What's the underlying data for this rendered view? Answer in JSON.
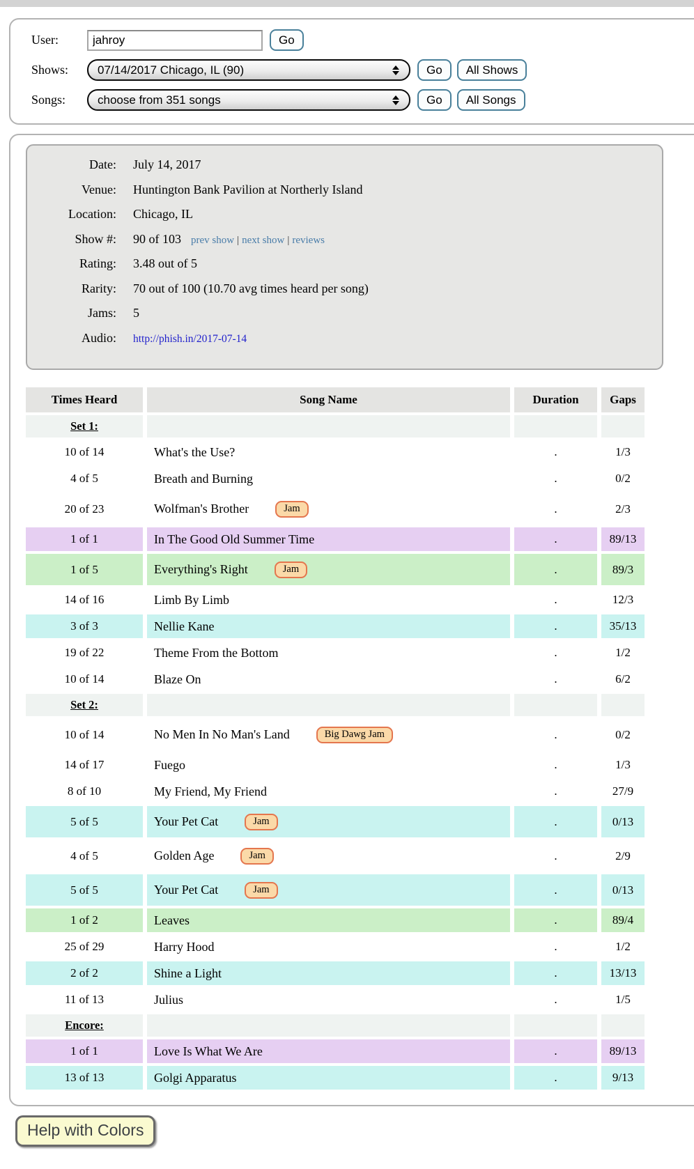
{
  "form": {
    "user_label": "User:",
    "user_value": "jahroy",
    "go_label": "Go",
    "shows_label": "Shows:",
    "shows_value": "07/14/2017 Chicago, IL (90)",
    "all_shows_label": "All Shows",
    "songs_label": "Songs:",
    "songs_value": "choose from 351 songs",
    "all_songs_label": "All Songs"
  },
  "show_info": {
    "date_label": "Date:",
    "date_value": "July 14, 2017",
    "venue_label": "Venue:",
    "venue_value": "Huntington Bank Pavilion at Northerly Island",
    "location_label": "Location:",
    "location_value": "Chicago, IL",
    "show_num_label": "Show #:",
    "show_num_value": "90 of 103",
    "links": {
      "prev": "prev show",
      "next": "next show",
      "reviews": "reviews",
      "separator": "|"
    },
    "rating_label": "Rating:",
    "rating_value": "3.48 out of 5",
    "rarity_label": "Rarity:",
    "rarity_value": "70 out of 100 (10.70 avg times heard per song)",
    "jams_label": "Jams:",
    "jams_value": "5",
    "audio_label": "Audio:",
    "audio_url": "http://phish.in/2017-07-14"
  },
  "table": {
    "headers": [
      "Times Heard",
      "Song Name",
      "Duration",
      "Gaps"
    ],
    "rows": [
      {
        "type": "set",
        "label": "Set 1:"
      },
      {
        "type": "song",
        "times": "10 of 14",
        "song": "What's the Use?",
        "badge": null,
        "duration": ".",
        "gaps": "1/3",
        "highlight": "none"
      },
      {
        "type": "song",
        "times": "4 of 5",
        "song": "Breath and Burning",
        "badge": null,
        "duration": ".",
        "gaps": "0/2",
        "highlight": "none"
      },
      {
        "type": "song",
        "times": "20 of 23",
        "song": "Wolfman's Brother",
        "badge": "Jam",
        "duration": ".",
        "gaps": "2/3",
        "highlight": "none"
      },
      {
        "type": "song",
        "times": "1 of 1",
        "song": "In The Good Old Summer Time",
        "badge": null,
        "duration": ".",
        "gaps": "89/13",
        "highlight": "purple"
      },
      {
        "type": "song",
        "times": "1 of 5",
        "song": "Everything's Right",
        "badge": "Jam",
        "duration": ".",
        "gaps": "89/3",
        "highlight": "green"
      },
      {
        "type": "song",
        "times": "14 of 16",
        "song": "Limb By Limb",
        "badge": null,
        "duration": ".",
        "gaps": "12/3",
        "highlight": "none"
      },
      {
        "type": "song",
        "times": "3 of 3",
        "song": "Nellie Kane",
        "badge": null,
        "duration": ".",
        "gaps": "35/13",
        "highlight": "cyan"
      },
      {
        "type": "song",
        "times": "19 of 22",
        "song": "Theme From the Bottom",
        "badge": null,
        "duration": ".",
        "gaps": "1/2",
        "highlight": "none"
      },
      {
        "type": "song",
        "times": "10 of 14",
        "song": "Blaze On",
        "badge": null,
        "duration": ".",
        "gaps": "6/2",
        "highlight": "none"
      },
      {
        "type": "set",
        "label": "Set 2:"
      },
      {
        "type": "song",
        "times": "10 of 14",
        "song": "No Men In No Man's Land",
        "badge": "Big Dawg Jam",
        "duration": ".",
        "gaps": "0/2",
        "highlight": "none"
      },
      {
        "type": "song",
        "times": "14 of 17",
        "song": "Fuego",
        "badge": null,
        "duration": ".",
        "gaps": "1/3",
        "highlight": "none"
      },
      {
        "type": "song",
        "times": "8 of 10",
        "song": "My Friend, My Friend",
        "badge": null,
        "duration": ".",
        "gaps": "27/9",
        "highlight": "none"
      },
      {
        "type": "song",
        "times": "5 of 5",
        "song": "Your Pet Cat",
        "badge": "Jam",
        "duration": ".",
        "gaps": "0/13",
        "highlight": "cyan"
      },
      {
        "type": "song",
        "times": "4 of 5",
        "song": "Golden Age",
        "badge": "Jam",
        "duration": ".",
        "gaps": "2/9",
        "highlight": "none"
      },
      {
        "type": "song",
        "times": "5 of 5",
        "song": "Your Pet Cat",
        "badge": "Jam",
        "duration": ".",
        "gaps": "0/13",
        "highlight": "cyan"
      },
      {
        "type": "song",
        "times": "1 of 2",
        "song": "Leaves",
        "badge": null,
        "duration": ".",
        "gaps": "89/4",
        "highlight": "green"
      },
      {
        "type": "song",
        "times": "25 of 29",
        "song": "Harry Hood",
        "badge": null,
        "duration": ".",
        "gaps": "1/2",
        "highlight": "none"
      },
      {
        "type": "song",
        "times": "2 of 2",
        "song": "Shine a Light",
        "badge": null,
        "duration": ".",
        "gaps": "13/13",
        "highlight": "cyan"
      },
      {
        "type": "song",
        "times": "11 of 13",
        "song": "Julius",
        "badge": null,
        "duration": ".",
        "gaps": "1/5",
        "highlight": "none"
      },
      {
        "type": "set",
        "label": "Encore:"
      },
      {
        "type": "song",
        "times": "1 of 1",
        "song": "Love Is What We Are",
        "badge": null,
        "duration": ".",
        "gaps": "89/13",
        "highlight": "purple"
      },
      {
        "type": "song",
        "times": "13 of 13",
        "song": "Golgi Apparatus",
        "badge": null,
        "duration": ".",
        "gaps": "9/13",
        "highlight": "cyan"
      }
    ]
  },
  "help_button_label": "Help with Colors",
  "colors": {
    "row_purple": "#E6CFF2",
    "row_green": "#CBEFC7",
    "row_cyan": "#C9F3F0",
    "set_row_bg": "#EFF3F1",
    "header_row_bg": "#E4E4E2",
    "jam_badge_bg": "#FBD9A8",
    "jam_badge_border": "#E4764E",
    "button_border": "#49809A",
    "nav_link_blue": "#4A7DA9",
    "audio_link_blue": "#2222CC",
    "help_button_bg": "#FAFAD0"
  }
}
